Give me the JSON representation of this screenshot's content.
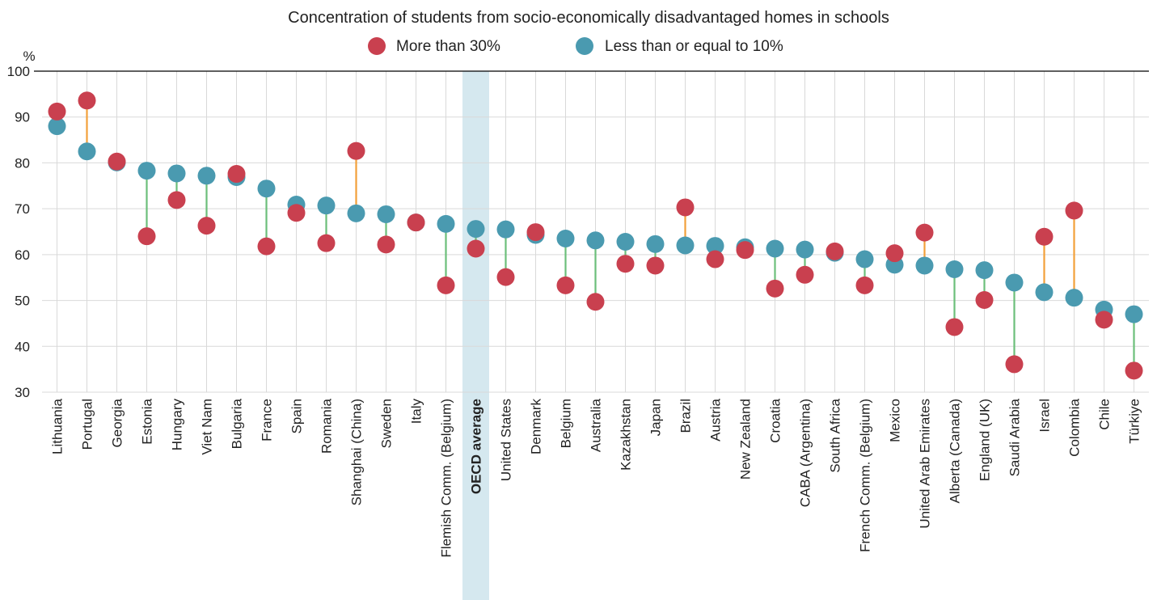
{
  "chart_data": {
    "type": "dot-range",
    "title": "Concentration of students from socio-economically disadvantaged homes in schools",
    "ylabel": "%",
    "ylim": [
      30,
      100
    ],
    "yticks": [
      30,
      40,
      50,
      60,
      70,
      80,
      90,
      100
    ],
    "grid": true,
    "legend_position": "top-center",
    "highlight_category": "OECD average",
    "colors": {
      "high_series": "#c9404f",
      "low_series": "#4a9ab0",
      "line_high_above": "#f2a03a",
      "line_low_above": "#6cbf7a",
      "highlight_band": "#d5e8ef",
      "grid": "#d9d9d9",
      "axis": "#000000"
    },
    "categories": [
      "Lithuania",
      "Portugal",
      "Georgia",
      "Estonia",
      "Hungary",
      "Viet Nam",
      "Bulgaria",
      "France",
      "Spain",
      "Romania",
      "Shanghai (China)",
      "Sweden",
      "Italy",
      "Flemish Comm. (Belgium)",
      "OECD average",
      "United States",
      "Denmark",
      "Belgium",
      "Australia",
      "Kazakhstan",
      "Japan",
      "Brazil",
      "Austria",
      "New Zealand",
      "Croatia",
      "CABA (Argentina)",
      "South Africa",
      "French Comm. (Belgium)",
      "Mexico",
      "United Arab Emirates",
      "Alberta (Canada)",
      "England (UK)",
      "Saudi Arabia",
      "Israel",
      "Colombia",
      "Chile",
      "Türkiye"
    ],
    "series": [
      {
        "name": "More than 30%",
        "values": [
          91.2,
          93.6,
          80.3,
          64.0,
          71.9,
          66.3,
          77.6,
          61.8,
          69.1,
          62.5,
          82.6,
          62.2,
          67.0,
          53.3,
          61.3,
          55.1,
          64.9,
          53.3,
          49.7,
          58.0,
          57.6,
          70.3,
          59.0,
          61.0,
          52.6,
          55.6,
          60.7,
          53.3,
          60.3,
          64.8,
          44.2,
          50.1,
          36.1,
          63.9,
          69.6,
          45.8,
          34.7
        ]
      },
      {
        "name": "Less than or equal to 10%",
        "values": [
          88.0,
          82.5,
          80.1,
          78.3,
          77.7,
          77.2,
          76.9,
          74.4,
          70.9,
          70.7,
          69.0,
          68.8,
          67.0,
          66.7,
          65.6,
          65.5,
          64.3,
          63.5,
          63.1,
          62.8,
          62.3,
          62.0,
          61.9,
          61.6,
          61.3,
          61.1,
          60.4,
          59.0,
          57.8,
          57.6,
          56.8,
          56.6,
          53.9,
          51.8,
          50.6,
          48.0,
          47.0
        ]
      }
    ]
  }
}
